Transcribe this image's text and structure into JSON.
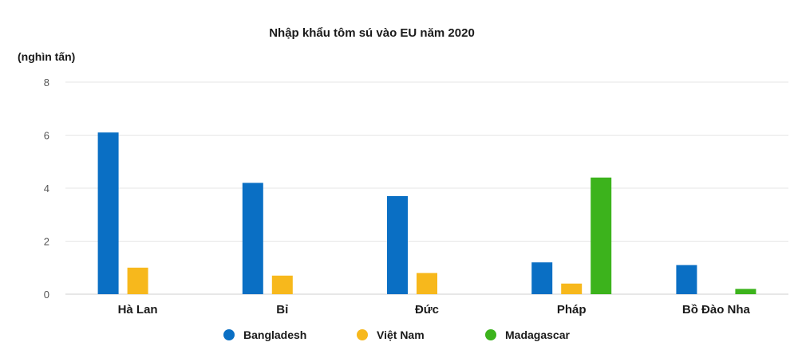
{
  "chart_data": {
    "type": "bar",
    "title": "Nhập khẩu tôm sú vào EU năm 2020",
    "ylabel": "(nghìn tấn)",
    "xlabel": "",
    "ylim": [
      0,
      8
    ],
    "yticks": [
      0,
      2,
      4,
      6,
      8
    ],
    "grid": true,
    "legend_position": "bottom",
    "categories": [
      "Hà Lan",
      "Bỉ",
      "Đức",
      "Pháp",
      "Bồ Đào Nha"
    ],
    "series": [
      {
        "name": "Bangladesh",
        "color": "#0a6fc4",
        "values": [
          6.1,
          4.2,
          3.7,
          1.2,
          1.1
        ]
      },
      {
        "name": "Việt Nam",
        "color": "#f7b81c",
        "values": [
          1.0,
          0.7,
          0.8,
          0.4,
          0
        ]
      },
      {
        "name": "Madagascar",
        "color": "#3cb31c",
        "values": [
          0,
          0,
          0,
          4.4,
          0.2
        ]
      }
    ]
  }
}
